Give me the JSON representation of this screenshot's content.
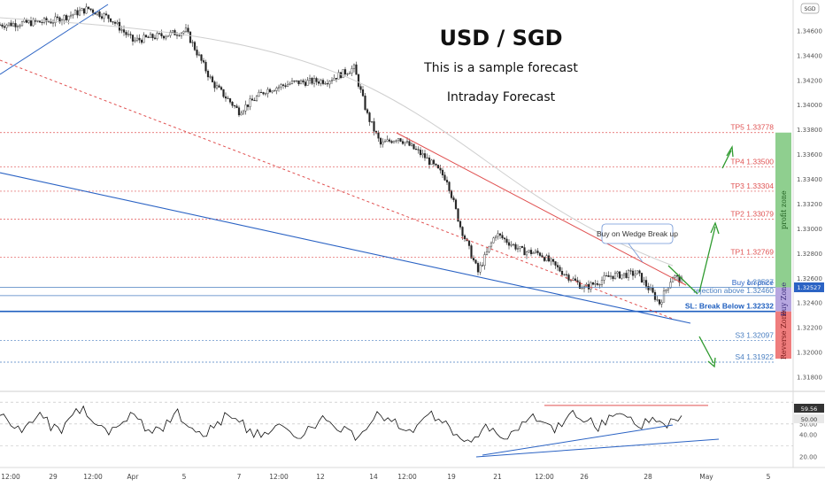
{
  "header": {
    "title": "USD / SGD",
    "subtitle": "This is a sample forecast",
    "subtitle2": "Intraday Forecast",
    "symbol_badge": "SGD"
  },
  "chart_data": [
    {
      "type": "candlestick",
      "title": "USD / SGD",
      "ylim": [
        1.317,
        1.3485
      ],
      "y_ticks": [
        "1.34600",
        "1.34400",
        "1.34200",
        "1.34000",
        "1.33800",
        "1.33600",
        "1.33400",
        "1.33200",
        "1.33000",
        "1.32800",
        "1.32600",
        "1.32400",
        "1.32200",
        "1.32000",
        "1.31800"
      ],
      "x_ticks": [
        "12:00",
        "29",
        "12:00",
        "Apr",
        "5",
        "7",
        "12:00",
        "12",
        "14",
        "12:00",
        "19",
        "21",
        "12:00",
        "26",
        "28",
        "May",
        "5"
      ],
      "levels": [
        {
          "name": "TP5",
          "label": "TP5 1.33778",
          "value": 1.33778,
          "color": "#e05555"
        },
        {
          "name": "TP4",
          "label": "TP4 1.33500",
          "value": 1.335,
          "color": "#e05555"
        },
        {
          "name": "TP3",
          "label": "TP3 1.33304",
          "value": 1.33304,
          "color": "#e05555"
        },
        {
          "name": "TP2",
          "label": "TP2 1.33079",
          "value": 1.33079,
          "color": "#e05555"
        },
        {
          "name": "TP1",
          "label": "TP1 1.32769",
          "value": 1.32769,
          "color": "#e05555"
        },
        {
          "name": "level",
          "label": "1.32527",
          "value": 1.32527,
          "color": "#4a7fc1"
        },
        {
          "name": "entry",
          "label": "rejection above 1.32460",
          "value": 1.3246,
          "color": "#4a7fc1"
        },
        {
          "name": "SL",
          "label": "SL: Break Below 1.32332",
          "value": 1.32332,
          "color": "#1f5fbf"
        },
        {
          "name": "S3",
          "label": "S3 1.32097",
          "value": 1.32097,
          "color": "#4a7fc1"
        },
        {
          "name": "S4",
          "label": "S4 1.31922",
          "value": 1.31922,
          "color": "#4a7fc1"
        }
      ],
      "annotations": [
        "Buy on price",
        "Buy on Wedge Break up"
      ],
      "zones": [
        {
          "label": "profit zone",
          "from": 1.32527,
          "to": 1.33778,
          "color": "#8fcf8f"
        },
        {
          "label": "Buy Zone",
          "from": 1.32332,
          "to": 1.32527,
          "color": "#b7a7e0"
        },
        {
          "label": "Reverse Zone",
          "from": 1.3195,
          "to": 1.32332,
          "color": "#ef7d7d"
        }
      ],
      "last_price": "1.32527"
    },
    {
      "type": "line",
      "title": "",
      "ylim": [
        15,
        75
      ],
      "y_ticks": [
        "20.00",
        "40.00",
        "50.00"
      ],
      "value_labels": [
        "59.56",
        "50.00"
      ],
      "series": [
        {
          "values": [
            55,
            52,
            48,
            44,
            50,
            58,
            54,
            47,
            45,
            52,
            60,
            62,
            55,
            50,
            46,
            43,
            49,
            56,
            58,
            53,
            47,
            44,
            48,
            55,
            59,
            54,
            50,
            45,
            42,
            46,
            52,
            57,
            53,
            49,
            44,
            40,
            38,
            42,
            48,
            46,
            43,
            40,
            44,
            50,
            55,
            52,
            48,
            45,
            42,
            39,
            44,
            52,
            58,
            56,
            50,
            45,
            42,
            46,
            53,
            58,
            55,
            50,
            44,
            38,
            33,
            36,
            42,
            48,
            45,
            40,
            38,
            43,
            50,
            55,
            52,
            48,
            45,
            50,
            57,
            60,
            56,
            52,
            48,
            51,
            56,
            62,
            58,
            53,
            49,
            52,
            57,
            55,
            50,
            54,
            60
          ]
        }
      ]
    }
  ]
}
